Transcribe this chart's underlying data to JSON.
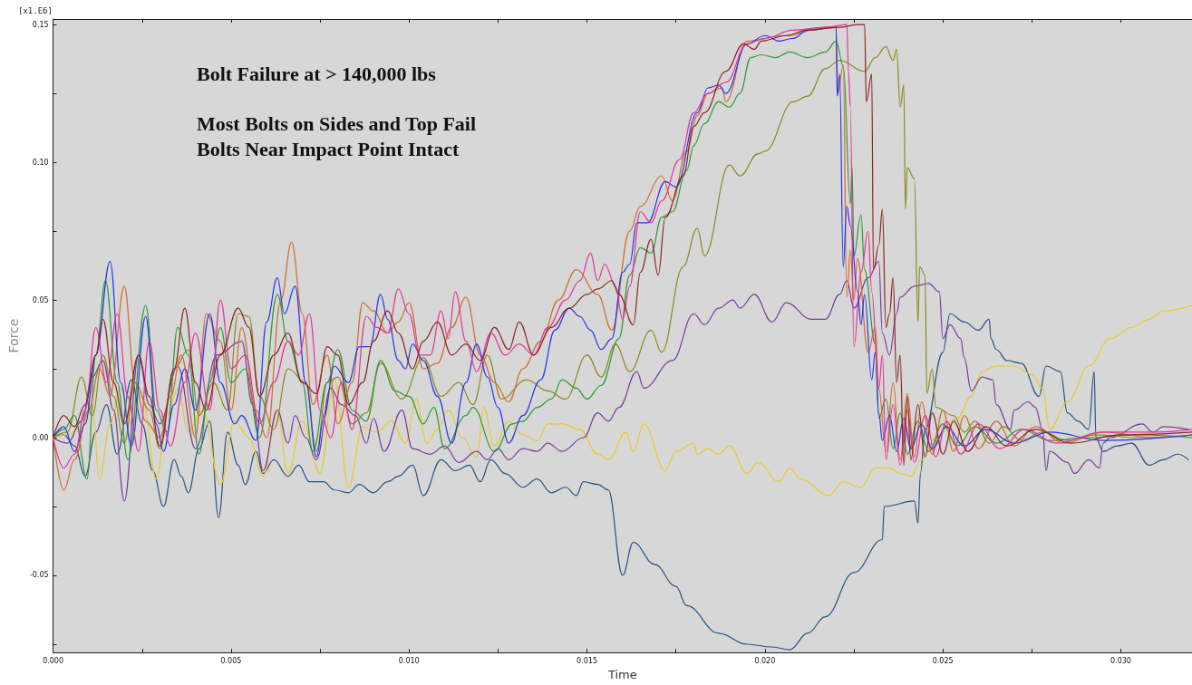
{
  "chart_data": {
    "type": "line",
    "xlabel": "Time",
    "ylabel": "Force",
    "annotations": [
      "[x1.E6]",
      "Bolt Failure at > 140,000 lbs",
      "Most Bolts on Sides and Top Fail",
      "Bolts Near Impact Point Intact"
    ],
    "xlim": [
      0,
      0.032
    ],
    "ylim": [
      -0.078,
      0.152
    ],
    "xticks": [
      {
        "value": 0,
        "label": "0.000"
      },
      {
        "value": 0.0025,
        "label": null
      },
      {
        "value": 0.005,
        "label": "0.005"
      },
      {
        "value": 0.0075,
        "label": null
      },
      {
        "value": 0.01,
        "label": "0.010"
      },
      {
        "value": 0.0125,
        "label": null
      },
      {
        "value": 0.015,
        "label": "0.015"
      },
      {
        "value": 0.0175,
        "label": null
      },
      {
        "value": 0.02,
        "label": "0.020"
      },
      {
        "value": 0.0225,
        "label": null
      },
      {
        "value": 0.025,
        "label": "0.025"
      },
      {
        "value": 0.0275,
        "label": null
      },
      {
        "value": 0.03,
        "label": "0.030"
      }
    ],
    "yticks": [
      {
        "value": -0.075,
        "label": null
      },
      {
        "value": -0.05,
        "label": "-0.05"
      },
      {
        "value": -0.025,
        "label": null
      },
      {
        "value": 0,
        "label": "0.00"
      },
      {
        "value": 0.025,
        "label": null
      },
      {
        "value": 0.05,
        "label": "0.05"
      },
      {
        "value": 0.075,
        "label": null
      },
      {
        "value": 0.1,
        "label": "0.10"
      },
      {
        "value": 0.125,
        "label": null
      },
      {
        "value": 0.15,
        "label": "0.15"
      }
    ],
    "grid": false,
    "series": [
      {
        "color": "#2a5282",
        "x": [
          0,
          0.0003,
          0.0006,
          0.0009,
          0.0012,
          0.0015,
          0.0018,
          0.0022,
          0.0025,
          0.0028,
          0.0031,
          0.0034,
          0.0036,
          0.0038,
          0.0041,
          0.0044,
          0.00465,
          0.0049,
          0.0052,
          0.0054,
          0.0057,
          0.0059,
          0.0062,
          0.0066,
          0.0069,
          0.0072,
          0.0076,
          0.0079,
          0.0083,
          0.0086,
          0.009,
          0.0094,
          0.0097,
          0.0101,
          0.0104,
          0.0109,
          0.0113,
          0.0117,
          0.012,
          0.0123,
          0.0127,
          0.0132,
          0.0136,
          0.014,
          0.0144,
          0.0147,
          0.0149,
          0.0153,
          0.0156,
          0.016,
          0.0163,
          0.0169,
          0.0175,
          0.0178,
          0.0187,
          0.0195,
          0.0202,
          0.0207,
          0.0212,
          0.0217,
          0.0225,
          0.0233,
          0.02335,
          0.0242,
          0.0243,
          0.02437,
          0.0245,
          0.025,
          0.0252,
          0.0256,
          0.026,
          0.0263,
          0.02635,
          0.0265,
          0.0268,
          0.0272,
          0.0277,
          0.0279,
          0.0283,
          0.0285,
          0.0288,
          0.0291,
          0.02925,
          0.0293,
          0.0295,
          0.0299,
          0.0303,
          0.0308,
          0.0312,
          0.0316,
          0.0319
        ],
        "values": [
          0,
          0.001,
          -0.003,
          -0.014,
          0.002,
          0.012,
          -0.006,
          0.021,
          0.005,
          -0.012,
          -0.025,
          -0.008,
          -0.014,
          -0.02,
          -0.004,
          0.006,
          -0.029,
          0.002,
          -0.01,
          -0.017,
          -0.005,
          -0.013,
          -0.008,
          -0.014,
          -0.01,
          -0.016,
          -0.016,
          -0.019,
          -0.02,
          -0.017,
          -0.02,
          -0.016,
          -0.014,
          -0.01,
          -0.021,
          -0.008,
          -0.012,
          -0.01,
          -0.016,
          -0.008,
          -0.013,
          -0.018,
          -0.015,
          -0.02,
          -0.018,
          -0.021,
          -0.016,
          -0.017,
          -0.019,
          -0.05,
          -0.038,
          -0.046,
          -0.054,
          -0.061,
          -0.071,
          -0.075,
          -0.076,
          -0.077,
          -0.071,
          -0.065,
          -0.049,
          -0.037,
          -0.025,
          -0.023,
          -0.031,
          -0.013,
          0.003,
          0.031,
          0.045,
          0.042,
          0.039,
          0.043,
          0.036,
          0.032,
          0.028,
          0.027,
          0.015,
          0.026,
          0.024,
          0.009,
          0.006,
          0.003,
          0.024,
          0,
          -0.005,
          -0.003,
          -0.002,
          -0.01,
          -0.008,
          -0.006,
          -0.008
        ]
      },
      {
        "color": "#e9c92b",
        "x": [
          0,
          0.0004,
          0.0008,
          0.0011,
          0.0013,
          0.0016,
          0.0019,
          0.0022,
          0.0025,
          0.0029,
          0.0032,
          0.0035,
          0.0038,
          0.0042,
          0.0047,
          0.0051,
          0.0055,
          0.0059,
          0.0063,
          0.0066,
          0.007,
          0.0075,
          0.0079,
          0.0083,
          0.0087,
          0.0091,
          0.0095,
          0.0099,
          0.0102,
          0.0105,
          0.0108,
          0.0111,
          0.0115,
          0.0119,
          0.0121,
          0.0124,
          0.0128,
          0.0132,
          0.0136,
          0.0139,
          0.0143,
          0.0148,
          0.0153,
          0.0156,
          0.0161,
          0.0163,
          0.0166,
          0.0172,
          0.0175,
          0.018,
          0.0181,
          0.0184,
          0.0187,
          0.019,
          0.0195,
          0.0198,
          0.0204,
          0.0207,
          0.021,
          0.0218,
          0.0222,
          0.0227,
          0.0231,
          0.0235,
          0.0238,
          0.0241,
          0.0244,
          0.0248,
          0.0254,
          0.0258,
          0.0261,
          0.0265,
          0.027,
          0.0275,
          0.0278,
          0.028,
          0.0285,
          0.0291,
          0.0297,
          0.0303,
          0.0308,
          0.0312,
          0.032
        ],
        "values": [
          0,
          0.001,
          0.004,
          0.012,
          -0.015,
          0.005,
          0.018,
          0.005,
          0.015,
          -0.015,
          0.008,
          0.018,
          0.002,
          0.01,
          -0.017,
          0.006,
          0,
          -0.014,
          0.009,
          -0.013,
          0.006,
          -0.013,
          0.021,
          -0.018,
          0.004,
          0.002,
          0.006,
          -0.002,
          0.014,
          -0.002,
          0.003,
          0.01,
          0,
          -0.007,
          0.011,
          -0.003,
          0.006,
          0.001,
          -0.001,
          0.005,
          0.005,
          0.003,
          -0.006,
          -0.008,
          0.002,
          -0.005,
          0.005,
          -0.012,
          -0.005,
          -0.002,
          -0.006,
          -0.004,
          -0.006,
          -0.003,
          -0.013,
          -0.009,
          -0.016,
          -0.011,
          -0.015,
          -0.021,
          -0.016,
          -0.018,
          -0.011,
          -0.011,
          -0.013,
          -0.014,
          -0.008,
          0,
          0.007,
          0.015,
          0.024,
          0.026,
          0.026,
          0.023,
          0.018,
          0.003,
          0.013,
          0.026,
          0.036,
          0.04,
          0.043,
          0.046,
          0.048
        ]
      },
      {
        "color": "#7b3b9e",
        "x": [
          0,
          0.0004,
          0.0008,
          0.0011,
          0.0014,
          0.0017,
          0.002,
          0.0024,
          0.0027,
          0.003,
          0.0035,
          0.004,
          0.0046,
          0.0053,
          0.0056,
          0.0059,
          0.0063,
          0.0066,
          0.0068,
          0.0071,
          0.0074,
          0.0078,
          0.0081,
          0.0085,
          0.0088,
          0.009,
          0.0093,
          0.0098,
          0.0101,
          0.0106,
          0.011,
          0.0114,
          0.0119,
          0.0122,
          0.0125,
          0.0128,
          0.0132,
          0.0136,
          0.0139,
          0.0143,
          0.0149,
          0.0153,
          0.0156,
          0.0159,
          0.0164,
          0.0166,
          0.0174,
          0.018,
          0.0183,
          0.0187,
          0.0191,
          0.0193,
          0.0197,
          0.0202,
          0.0206,
          0.0213,
          0.0217,
          0.0221,
          0.0223,
          0.0225,
          0.0229,
          0.0232,
          0.0233,
          0.0235,
          0.0237,
          0.0238,
          0.0242,
          0.0246,
          0.0249,
          0.025,
          0.0252,
          0.0255,
          0.0256,
          0.0258,
          0.0261,
          0.0264,
          0.0265,
          0.0269,
          0.027,
          0.0274,
          0.0276,
          0.0278,
          0.0279,
          0.028,
          0.0285,
          0.0287,
          0.0291,
          0.0294,
          0.0295,
          0.0297,
          0.0306,
          0.0309,
          0.0312,
          0.0319
        ],
        "values": [
          0,
          -0.002,
          0.006,
          0.022,
          0.028,
          0.01,
          -0.023,
          0.03,
          0.012,
          0.005,
          0.026,
          -0.004,
          0.03,
          0.035,
          0.012,
          -0.012,
          0.01,
          -0.002,
          0.008,
          0,
          -0.008,
          0.018,
          0.012,
          0.008,
          -0.002,
          0.007,
          -0.005,
          0.01,
          -0.004,
          -0.006,
          -0.003,
          -0.009,
          -0.005,
          -0.008,
          -0.004,
          -0.008,
          -0.004,
          -0.005,
          -0.002,
          -0.005,
          0,
          0.009,
          0.006,
          0.011,
          0.024,
          0.018,
          0.028,
          0.045,
          0.041,
          0.047,
          0.05,
          0.047,
          0.052,
          0.042,
          0.049,
          0.043,
          0.043,
          0.052,
          0.057,
          0.047,
          0.058,
          0.064,
          0.038,
          0.03,
          0.045,
          0.051,
          0.055,
          0.056,
          0.053,
          0.036,
          0.041,
          0.036,
          0.029,
          0.017,
          0.022,
          0.021,
          0.012,
          0.003,
          0.01,
          0.013,
          0.011,
          0.003,
          -0.012,
          -0.005,
          -0.009,
          -0.013,
          -0.008,
          -0.011,
          -0.002,
          0,
          0.005,
          0.002,
          0.004,
          0.003
        ]
      },
      {
        "color": "#8d8a1f",
        "x": [
          0,
          0.0004,
          0.0008,
          0.0011,
          0.0014,
          0.0017,
          0.002,
          0.0023,
          0.0027,
          0.003,
          0.0034,
          0.0038,
          0.0041,
          0.0045,
          0.0049,
          0.0052,
          0.0055,
          0.0058,
          0.0062,
          0.0066,
          0.0071,
          0.0074,
          0.0077,
          0.008,
          0.0084,
          0.0088,
          0.0092,
          0.0098,
          0.0104,
          0.0109,
          0.0114,
          0.0118,
          0.0122,
          0.0126,
          0.0133,
          0.0139,
          0.0144,
          0.015,
          0.0154,
          0.0158,
          0.0162,
          0.0168,
          0.0171,
          0.0177,
          0.0181,
          0.0183,
          0.019,
          0.0193,
          0.0198,
          0.02,
          0.0208,
          0.0212,
          0.0217,
          0.0221,
          0.0228,
          0.0231,
          0.0234,
          0.0236,
          0.0237,
          0.0238,
          0.0239,
          0.02395,
          0.024,
          0.0242,
          0.0243,
          0.02435,
          0.0245,
          0.02455,
          0.0247,
          0.0248,
          0.0253,
          0.0256,
          0.0259,
          0.0263,
          0.0267,
          0.0272,
          0.0278,
          0.0285,
          0.0293,
          0.0305,
          0.032
        ],
        "values": [
          0,
          0.002,
          0.022,
          0.008,
          0.03,
          0.015,
          -0.002,
          0.02,
          0.01,
          -0.004,
          0.025,
          0.032,
          0.008,
          0.02,
          0.01,
          0.045,
          0.044,
          0.015,
          0.003,
          0.025,
          0.02,
          -0.005,
          0.02,
          0.022,
          0.005,
          0.009,
          0.027,
          0.014,
          0.029,
          0.015,
          0.02,
          0.012,
          0.03,
          0.014,
          0.021,
          0.017,
          0.014,
          0.03,
          0.022,
          0.034,
          0.024,
          0.039,
          0.031,
          0.062,
          0.076,
          0.066,
          0.099,
          0.095,
          0.103,
          0.104,
          0.122,
          0.124,
          0.134,
          0.137,
          0.133,
          0.138,
          0.142,
          0.137,
          0.141,
          0.12,
          0.128,
          0.083,
          0.098,
          0.094,
          0.042,
          0.062,
          0.059,
          0.016,
          0.025,
          0.011,
          0.008,
          0.002,
          0.006,
          -0.002,
          0.004,
          -0.001,
          0.002,
          -0.001,
          0.001,
          0,
          0.001
        ]
      },
      {
        "color": "#2f9a35",
        "x": [
          0,
          0.0003,
          0.0006,
          0.00095,
          0.0012,
          0.00147,
          0.0018,
          0.0021,
          0.0026,
          0.0029,
          0.0032,
          0.0035,
          0.0038,
          0.0041,
          0.0044,
          0.0047,
          0.005,
          0.0054,
          0.0058,
          0.0063,
          0.0066,
          0.007,
          0.0073,
          0.0077,
          0.008,
          0.0084,
          0.0088,
          0.0092,
          0.0096,
          0.01,
          0.0104,
          0.0107,
          0.011,
          0.0116,
          0.0118,
          0.0124,
          0.0129,
          0.0132,
          0.0136,
          0.014,
          0.0143,
          0.0147,
          0.015,
          0.0154,
          0.0159,
          0.0162,
          0.0165,
          0.0168,
          0.0171,
          0.0174,
          0.0178,
          0.018,
          0.0183,
          0.0187,
          0.019,
          0.0193,
          0.0196,
          0.0199,
          0.0203,
          0.0207,
          0.0212,
          0.0217,
          0.022,
          0.0222,
          0.0224,
          0.02245,
          0.0225,
          0.0227,
          0.0228,
          0.0231,
          0.0232,
          0.0234,
          0.0236,
          0.0238,
          0.024,
          0.0243,
          0.0246,
          0.025,
          0.0254,
          0.0259,
          0.0265,
          0.0272,
          0.028,
          0.029,
          0.0305,
          0.032
        ],
        "values": [
          0,
          0.003,
          0.008,
          -0.015,
          0.03,
          0.057,
          0.02,
          -0.008,
          0.048,
          0.01,
          0.002,
          0.04,
          0.03,
          -0.006,
          0.02,
          0.04,
          0.02,
          0.025,
          0,
          0.052,
          0.035,
          0.02,
          -0.005,
          0.02,
          0.032,
          0.01,
          0.006,
          0.028,
          0.017,
          0.015,
          0.005,
          0.011,
          -0.004,
          0.008,
          0.011,
          -0.005,
          0.005,
          0.006,
          0.011,
          0.014,
          0.021,
          0.018,
          0.014,
          0.019,
          0.036,
          0.059,
          0.069,
          0.067,
          0.08,
          0.082,
          0.097,
          0.106,
          0.114,
          0.122,
          0.12,
          0.125,
          0.138,
          0.139,
          0.138,
          0.14,
          0.138,
          0.14,
          0.144,
          0.135,
          0.085,
          0.098,
          0.066,
          0.081,
          0.061,
          0.034,
          0.007,
          0.014,
          -0.004,
          0.009,
          -0.006,
          0.006,
          -0.005,
          0.005,
          -0.003,
          0.004,
          -0.002,
          0.003,
          -0.001,
          0,
          0.001,
          0
        ]
      },
      {
        "color": "#d36c2c",
        "x": [
          0,
          0.0003,
          0.0006,
          0.001,
          0.0013,
          0.0016,
          0.002,
          0.0023,
          0.0026,
          0.003,
          0.0033,
          0.0036,
          0.004,
          0.0043,
          0.0047,
          0.005,
          0.0053,
          0.0057,
          0.006,
          0.0064,
          0.0067,
          0.007,
          0.0073,
          0.0077,
          0.008,
          0.0084,
          0.0087,
          0.009,
          0.0094,
          0.0097,
          0.01,
          0.0104,
          0.0108,
          0.0112,
          0.0116,
          0.012,
          0.0124,
          0.0128,
          0.0132,
          0.0137,
          0.0142,
          0.0147,
          0.0153,
          0.0157,
          0.0162,
          0.0165,
          0.0171,
          0.0174,
          0.0178,
          0.0181,
          0.0184,
          0.0188,
          0.0189,
          0.0195,
          0.0206,
          0.0217,
          0.022,
          0.02205,
          0.0222,
          0.0223,
          0.0224,
          0.0225,
          0.0226,
          0.0229,
          0.0231,
          0.0232,
          0.0234,
          0.0236,
          0.0238,
          0.024,
          0.0242,
          0.0244,
          0.0247,
          0.025,
          0.0253,
          0.0256,
          0.026,
          0.0265,
          0.027,
          0.0276,
          0.0284,
          0.0295,
          0.031,
          0.032
        ],
        "values": [
          0,
          -0.019,
          -0.008,
          0.01,
          0.025,
          0.015,
          0.055,
          0.02,
          0.006,
          0,
          0.015,
          0.03,
          0,
          0.045,
          0.035,
          0.01,
          0.04,
          0.01,
          0,
          0.05,
          0.071,
          0.045,
          0.012,
          0.03,
          0.005,
          0.02,
          0.049,
          0.046,
          0.038,
          0.042,
          0.049,
          0.025,
          0.027,
          0.04,
          0.051,
          0.03,
          0.02,
          0.013,
          0.025,
          0.035,
          0.05,
          0.061,
          0.052,
          0.039,
          0.075,
          0.084,
          0.095,
          0.086,
          0.104,
          0.117,
          0.125,
          0.127,
          0.122,
          0.144,
          0.146,
          0.149,
          0.149,
          0.125,
          0.135,
          0.051,
          0.068,
          0.05,
          0.065,
          0.031,
          0.04,
          0.018,
          -0.005,
          0.02,
          -0.008,
          0.016,
          -0.007,
          0.013,
          -0.006,
          0.01,
          -0.005,
          0.008,
          -0.004,
          0.006,
          -0.003,
          0.004,
          -0.002,
          0.002,
          0,
          0.001
        ]
      },
      {
        "color": "#2636ec",
        "x": [
          0,
          0.0003,
          0.0006,
          0.0009,
          0.0012,
          0.0016,
          0.0019,
          0.0022,
          0.0026,
          0.0029,
          0.0031,
          0.0034,
          0.0037,
          0.004,
          0.0044,
          0.0047,
          0.0051,
          0.0053,
          0.0057,
          0.006,
          0.0063,
          0.0065,
          0.0068,
          0.0071,
          0.0074,
          0.0076,
          0.0079,
          0.0083,
          0.0086,
          0.0089,
          0.0092,
          0.0094,
          0.0097,
          0.0099,
          0.0101,
          0.0104,
          0.0108,
          0.0112,
          0.0116,
          0.0119,
          0.0122,
          0.0125,
          0.0128,
          0.0132,
          0.0137,
          0.0141,
          0.0145,
          0.0148,
          0.0151,
          0.0154,
          0.0157,
          0.016,
          0.0162,
          0.0164,
          0.0167,
          0.0172,
          0.0175,
          0.0181,
          0.0184,
          0.0187,
          0.0189,
          0.0195,
          0.02,
          0.0204,
          0.0208,
          0.0212,
          0.022,
          0.02203,
          0.0221,
          0.0222,
          0.0223,
          0.0224,
          0.0226,
          0.0227,
          0.0228,
          0.023,
          0.0231,
          0.0232,
          0.0233,
          0.0235,
          0.0237,
          0.0239,
          0.0241,
          0.0244,
          0.0247,
          0.0251,
          0.0256,
          0.0262,
          0.027,
          0.028,
          0.0295,
          0.032
        ],
        "values": [
          0,
          0.004,
          -0.005,
          0.005,
          0.03,
          0.064,
          0.02,
          -0.003,
          0.044,
          0.005,
          -0.005,
          0.012,
          0.025,
          0.01,
          0.045,
          0.02,
          0.005,
          0.008,
          -0.001,
          0.042,
          0.058,
          0.045,
          0.055,
          0.02,
          -0.007,
          0.007,
          0.026,
          0.02,
          0.033,
          0.033,
          0.052,
          0.043,
          0.028,
          0.025,
          0.034,
          0.028,
          0.015,
          -0.002,
          0.02,
          0.034,
          0.022,
          0.011,
          -0.002,
          0.008,
          0.021,
          0.039,
          0.047,
          0.044,
          0.039,
          0.032,
          0.036,
          0.06,
          0.063,
          0.078,
          0.078,
          0.093,
          0.091,
          0.118,
          0.127,
          0.128,
          0.125,
          0.143,
          0.146,
          0.144,
          0.145,
          0.148,
          0.149,
          0.124,
          0.132,
          0.062,
          0.084,
          0.077,
          0.053,
          0.041,
          0.052,
          0.021,
          0.031,
          0.009,
          -0.001,
          0.008,
          -0.005,
          0.007,
          -0.004,
          0.005,
          -0.004,
          0.004,
          -0.003,
          0.003,
          -0.002,
          0.002,
          -0.001,
          0.001
        ]
      },
      {
        "color": "#e3339d",
        "x": [
          0,
          0.0003,
          0.0006,
          0.0009,
          0.0012,
          0.0015,
          0.0018,
          0.0021,
          0.0024,
          0.0027,
          0.003,
          0.0033,
          0.0037,
          0.004,
          0.0044,
          0.0047,
          0.005,
          0.0054,
          0.0058,
          0.0062,
          0.0066,
          0.0069,
          0.0072,
          0.0075,
          0.0078,
          0.0081,
          0.0084,
          0.0088,
          0.0091,
          0.0094,
          0.0097,
          0.01,
          0.0103,
          0.0106,
          0.0109,
          0.0111,
          0.0113,
          0.0116,
          0.0119,
          0.0123,
          0.0127,
          0.0131,
          0.0135,
          0.0139,
          0.0144,
          0.0148,
          0.0151,
          0.0153,
          0.0155,
          0.0158,
          0.016,
          0.0162,
          0.0165,
          0.0168,
          0.0171,
          0.0176,
          0.018,
          0.0184,
          0.0189,
          0.0195,
          0.02,
          0.0208,
          0.0217,
          0.0223,
          0.02235,
          0.0224,
          0.0225,
          0.0227,
          0.0229,
          0.023,
          0.0232,
          0.0233,
          0.0234,
          0.0236,
          0.0238,
          0.024,
          0.0242,
          0.0245,
          0.0248,
          0.0251,
          0.0255,
          0.026,
          0.0266,
          0.0273,
          0.0282,
          0.0295,
          0.031,
          0.032
        ],
        "values": [
          0,
          -0.011,
          -0.006,
          0.01,
          0.04,
          0.02,
          0.045,
          0.015,
          -0.005,
          0.035,
          0.01,
          -0.003,
          0.02,
          0.038,
          0.01,
          0.05,
          0.025,
          0.03,
          0.005,
          0.02,
          0.035,
          0.03,
          0.045,
          0.01,
          0,
          0.02,
          0.003,
          0.044,
          0.04,
          0.038,
          0.054,
          0.045,
          0.03,
          0.03,
          0.046,
          0.036,
          0.053,
          0.035,
          0.024,
          0.038,
          0.03,
          0.034,
          0.03,
          0.04,
          0.05,
          0.057,
          0.067,
          0.057,
          0.063,
          0.055,
          0.043,
          0.055,
          0.082,
          0.078,
          0.086,
          0.101,
          0.118,
          0.125,
          0.129,
          0.143,
          0.145,
          0.148,
          0.149,
          0.15,
          0.133,
          0.12,
          0.033,
          0.06,
          0.075,
          0.053,
          0.018,
          0.03,
          -0.008,
          0.012,
          -0.01,
          0.01,
          -0.009,
          0.008,
          -0.007,
          0.006,
          -0.006,
          0.005,
          -0.004,
          0.003,
          -0.002,
          0.002,
          0.002,
          0.003
        ]
      },
      {
        "color": "#8c2424",
        "x": [
          0,
          0.0003,
          0.0006,
          0.0009,
          0.0012,
          0.0014,
          0.0017,
          0.002,
          0.0024,
          0.0027,
          0.003,
          0.0034,
          0.0037,
          0.004,
          0.0043,
          0.0047,
          0.0052,
          0.0055,
          0.0058,
          0.0062,
          0.0066,
          0.007,
          0.0074,
          0.0077,
          0.008,
          0.0083,
          0.0087,
          0.009,
          0.0094,
          0.0097,
          0.0101,
          0.0104,
          0.0108,
          0.0112,
          0.0116,
          0.012,
          0.0124,
          0.0128,
          0.0131,
          0.0135,
          0.014,
          0.0145,
          0.015,
          0.0153,
          0.0157,
          0.0159,
          0.0163,
          0.0165,
          0.0168,
          0.017,
          0.0172,
          0.0177,
          0.018,
          0.0183,
          0.0189,
          0.0194,
          0.0197,
          0.0199,
          0.0206,
          0.0212,
          0.0221,
          0.0226,
          0.0228,
          0.02285,
          0.023,
          0.02305,
          0.0232,
          0.0233,
          0.0234,
          0.0235,
          0.0236,
          0.0237,
          0.0238,
          0.0239,
          0.024,
          0.0241,
          0.0243,
          0.0245,
          0.0247,
          0.025,
          0.0253,
          0.0257,
          0.0262,
          0.0268,
          0.0276,
          0.0286,
          0.03,
          0.032
        ],
        "values": [
          0,
          0.008,
          0.004,
          0.012,
          0.03,
          0.043,
          0.02,
          0.005,
          0.03,
          0.015,
          -0.003,
          0.025,
          0.047,
          0.02,
          0.01,
          0.03,
          0.047,
          0.04,
          0.015,
          0.03,
          0.038,
          0.02,
          0.016,
          0.033,
          0.03,
          0.012,
          0.02,
          0.035,
          0.046,
          0.038,
          0.025,
          0.035,
          0.042,
          0.03,
          0.034,
          0.028,
          0.04,
          0.032,
          0.042,
          0.03,
          0.04,
          0.047,
          0.052,
          0.054,
          0.057,
          0.052,
          0.041,
          0.06,
          0.072,
          0.059,
          0.08,
          0.095,
          0.113,
          0.118,
          0.133,
          0.143,
          0.141,
          0.144,
          0.146,
          0.148,
          0.149,
          0.15,
          0.15,
          0.122,
          0.132,
          0.061,
          0.07,
          0.083,
          0.04,
          0.045,
          0.058,
          0.02,
          0.03,
          -0.01,
          0.015,
          -0.008,
          0.012,
          -0.007,
          0.009,
          -0.006,
          0.006,
          -0.005,
          0.004,
          -0.003,
          0.003,
          -0.002,
          0.001,
          0.002
        ]
      }
    ]
  }
}
